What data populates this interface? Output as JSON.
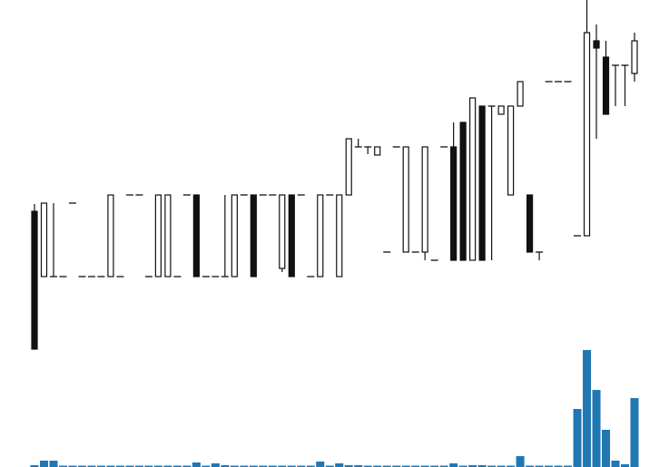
{
  "chart_data": {
    "type": "candlestick",
    "up_color": "#ffffff",
    "down_color": "#111111",
    "edge_color": "#111111",
    "volume_color": "#1f77b4",
    "ylim": [
      0,
      390
    ],
    "volume_lim": [
      0,
      130
    ],
    "open": [
      157,
      85,
      85,
      85,
      166,
      85,
      85,
      85,
      85,
      85,
      175,
      175,
      85,
      85,
      85,
      85,
      175,
      175,
      85,
      85,
      85,
      85,
      175,
      175,
      175,
      175,
      94,
      175,
      175,
      85,
      85,
      175,
      85,
      175,
      228,
      228,
      219,
      112,
      228,
      112,
      112,
      112,
      103,
      228,
      228,
      255,
      103,
      273,
      273,
      264,
      175,
      273,
      175,
      112,
      300,
      300,
      300,
      130,
      130,
      345,
      327,
      318,
      318,
      309
    ],
    "high": [
      165,
      166,
      166,
      85,
      166,
      85,
      85,
      85,
      175,
      85,
      175,
      175,
      85,
      175,
      175,
      85,
      175,
      175,
      85,
      85,
      175,
      175,
      175,
      175,
      175,
      175,
      175,
      175,
      175,
      85,
      175,
      175,
      175,
      237,
      237,
      228,
      228,
      112,
      228,
      228,
      112,
      228,
      103,
      228,
      255,
      255,
      282,
      273,
      273,
      273,
      273,
      300,
      175,
      112,
      300,
      300,
      300,
      130,
      390,
      363,
      345,
      318,
      318,
      354
    ],
    "low": [
      5,
      85,
      85,
      85,
      166,
      85,
      85,
      85,
      85,
      85,
      175,
      175,
      85,
      85,
      85,
      85,
      175,
      85,
      85,
      85,
      85,
      85,
      175,
      85,
      175,
      175,
      90,
      85,
      175,
      85,
      85,
      175,
      85,
      175,
      228,
      220,
      219,
      112,
      228,
      112,
      112,
      103,
      103,
      228,
      103,
      103,
      103,
      103,
      103,
      264,
      175,
      273,
      112,
      103,
      300,
      300,
      300,
      130,
      130,
      237,
      264,
      273,
      273,
      300
    ],
    "close": [
      5,
      166,
      85,
      85,
      166,
      85,
      85,
      85,
      175,
      85,
      175,
      175,
      85,
      175,
      175,
      85,
      175,
      85,
      85,
      85,
      85,
      175,
      175,
      85,
      175,
      175,
      175,
      85,
      175,
      85,
      175,
      175,
      175,
      237,
      228,
      228,
      228,
      112,
      228,
      228,
      112,
      228,
      103,
      228,
      103,
      103,
      282,
      103,
      273,
      273,
      273,
      300,
      112,
      112,
      300,
      300,
      300,
      130,
      354,
      337,
      264,
      318,
      318,
      345
    ],
    "volume": [
      2,
      7,
      7,
      0,
      0,
      1,
      0,
      0,
      1,
      0,
      0,
      0,
      0,
      0,
      0,
      1,
      0,
      5,
      0,
      4,
      2,
      0,
      0,
      1,
      0,
      0,
      1,
      0,
      0,
      1,
      6,
      0,
      4,
      2,
      2,
      1,
      1,
      0,
      0,
      0,
      0,
      1,
      0,
      0,
      4,
      0,
      2,
      2,
      0,
      0,
      0,
      12,
      0,
      0,
      0,
      0,
      1,
      64,
      129,
      85,
      41,
      7,
      3,
      76
    ]
  }
}
